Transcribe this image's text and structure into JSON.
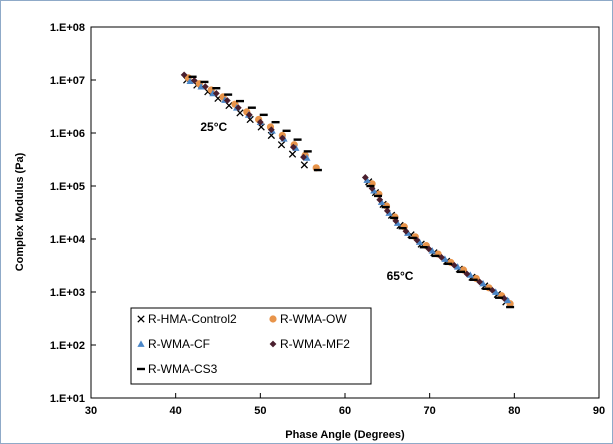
{
  "chart_data": {
    "type": "scatter",
    "xlabel": "Phase Angle  (Degrees)",
    "ylabel": "Complex Modulus  (Pa)",
    "xlim": [
      30,
      90
    ],
    "ylim_log10": [
      1,
      8
    ],
    "y_scale": "log",
    "x_ticks": [
      "30",
      "40",
      "50",
      "60",
      "70",
      "80",
      "90"
    ],
    "y_ticks": [
      "1.E+01",
      "1.E+02",
      "1.E+03",
      "1.E+04",
      "1.E+05",
      "1.E+06",
      "1.E+07",
      "1.E+08"
    ],
    "grid": false,
    "legend_position": "bottom-left",
    "annotations": [
      {
        "text": "25°C",
        "x": 44.5,
        "y": 1100000
      },
      {
        "text": "65°C",
        "x": 66.5,
        "y": 1700
      }
    ],
    "series": [
      {
        "name": "R-HMA-Control2",
        "marker": "x",
        "color": "#000000",
        "points": [
          [
            41.3,
            10000000
          ],
          [
            42.5,
            8000000
          ],
          [
            43.8,
            6000000
          ],
          [
            45.0,
            4500000
          ],
          [
            46.3,
            3300000
          ],
          [
            47.6,
            2400000
          ],
          [
            48.8,
            1800000
          ],
          [
            50.1,
            1300000
          ],
          [
            51.3,
            900000
          ],
          [
            52.5,
            600000
          ],
          [
            53.8,
            400000
          ],
          [
            55.2,
            250000
          ],
          [
            62.8,
            120000
          ],
          [
            63.6,
            75000
          ],
          [
            64.5,
            45000
          ],
          [
            65.5,
            28000
          ],
          [
            66.5,
            18000
          ],
          [
            67.8,
            12000
          ],
          [
            69.0,
            8000
          ],
          [
            70.5,
            5500
          ],
          [
            72.0,
            3800
          ],
          [
            73.5,
            2700
          ],
          [
            75.0,
            1900
          ],
          [
            76.5,
            1300
          ],
          [
            78.0,
            900
          ],
          [
            79.0,
            650
          ]
        ]
      },
      {
        "name": "R-WMA-OW",
        "marker": "circle",
        "color": "#e8944a",
        "points": [
          [
            41.5,
            11000000
          ],
          [
            42.8,
            8500000
          ],
          [
            44.2,
            6500000
          ],
          [
            45.6,
            4800000
          ],
          [
            47.0,
            3500000
          ],
          [
            48.4,
            2500000
          ],
          [
            49.8,
            1800000
          ],
          [
            51.2,
            1300000
          ],
          [
            52.6,
            900000
          ],
          [
            54.0,
            600000
          ],
          [
            55.3,
            380000
          ],
          [
            56.6,
            220000
          ],
          [
            63.2,
            110000
          ],
          [
            64.0,
            70000
          ],
          [
            64.9,
            42000
          ],
          [
            65.9,
            26000
          ],
          [
            67.0,
            17000
          ],
          [
            68.3,
            11000
          ],
          [
            69.6,
            7500
          ],
          [
            71.0,
            5200
          ],
          [
            72.5,
            3600
          ],
          [
            74.0,
            2600
          ],
          [
            75.5,
            1800
          ],
          [
            77.0,
            1200
          ],
          [
            78.5,
            850
          ],
          [
            79.5,
            600
          ]
        ]
      },
      {
        "name": "R-WMA-CF",
        "marker": "triangle",
        "color": "#4a86c8",
        "points": [
          [
            41.7,
            9500000
          ],
          [
            43.0,
            7500000
          ],
          [
            44.4,
            5600000
          ],
          [
            45.8,
            4200000
          ],
          [
            47.2,
            3000000
          ],
          [
            48.6,
            2200000
          ],
          [
            50.0,
            1600000
          ],
          [
            51.4,
            1100000
          ],
          [
            52.8,
            780000
          ],
          [
            54.2,
            520000
          ],
          [
            55.5,
            340000
          ],
          [
            62.6,
            130000
          ],
          [
            63.4,
            82000
          ],
          [
            64.3,
            50000
          ],
          [
            65.2,
            31000
          ],
          [
            66.2,
            20000
          ],
          [
            67.4,
            13000
          ],
          [
            68.8,
            8800
          ],
          [
            70.3,
            6000
          ],
          [
            71.8,
            4200
          ],
          [
            73.3,
            3000
          ],
          [
            74.8,
            2100
          ],
          [
            76.3,
            1450
          ],
          [
            77.8,
            1000
          ],
          [
            79.2,
            700
          ]
        ]
      },
      {
        "name": "R-WMA-MF2",
        "marker": "diamond",
        "color": "#4a1f2e",
        "points": [
          [
            41.0,
            12500000
          ],
          [
            42.2,
            9800000
          ],
          [
            43.5,
            7500000
          ],
          [
            44.8,
            5600000
          ],
          [
            46.1,
            4100000
          ],
          [
            47.4,
            3000000
          ],
          [
            48.7,
            2200000
          ],
          [
            50.0,
            1600000
          ],
          [
            51.3,
            1150000
          ],
          [
            52.6,
            800000
          ],
          [
            53.9,
            540000
          ],
          [
            55.1,
            350000
          ],
          [
            62.4,
            145000
          ],
          [
            63.2,
            90000
          ],
          [
            64.1,
            55000
          ],
          [
            65.0,
            34000
          ],
          [
            66.0,
            22000
          ],
          [
            67.2,
            14000
          ],
          [
            68.5,
            9500
          ],
          [
            69.9,
            6500
          ],
          [
            71.4,
            4500
          ],
          [
            72.9,
            3200
          ],
          [
            74.4,
            2200
          ],
          [
            75.9,
            1550
          ],
          [
            77.4,
            1080
          ],
          [
            78.8,
            760
          ]
        ]
      },
      {
        "name": "R-WMA-CS3",
        "marker": "dash",
        "color": "#000000",
        "points": [
          [
            42.0,
            11500000
          ],
          [
            43.4,
            9200000
          ],
          [
            44.8,
            7000000
          ],
          [
            46.2,
            5300000
          ],
          [
            47.6,
            4000000
          ],
          [
            49.0,
            3000000
          ],
          [
            50.4,
            2200000
          ],
          [
            51.8,
            1600000
          ],
          [
            53.1,
            1100000
          ],
          [
            54.4,
            750000
          ],
          [
            55.6,
            450000
          ],
          [
            56.8,
            200000
          ],
          [
            63.0,
            100000
          ],
          [
            63.9,
            65000
          ],
          [
            64.8,
            40000
          ],
          [
            65.8,
            25000
          ],
          [
            66.8,
            16000
          ],
          [
            68.0,
            10500
          ],
          [
            69.3,
            7000
          ],
          [
            70.7,
            4800
          ],
          [
            72.2,
            3400
          ],
          [
            73.7,
            2400
          ],
          [
            75.2,
            1700
          ],
          [
            76.7,
            1150
          ],
          [
            78.2,
            780
          ],
          [
            79.5,
            520
          ]
        ]
      }
    ]
  }
}
